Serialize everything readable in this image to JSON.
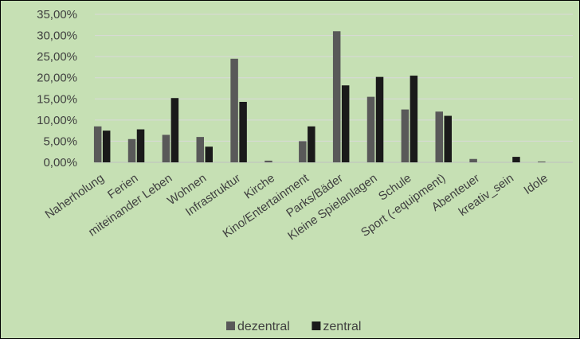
{
  "chart_data": {
    "type": "bar",
    "categories": [
      "Naherholung",
      "Ferien",
      "miteinander Leben",
      "Wohnen",
      "Infrastruktur",
      "Kirche",
      "Kino/Entertainment",
      "Parks/Bäder",
      "Kleine Spielanlagen",
      "Schule",
      "Sport (-equipment)",
      "Abenteuer",
      "kreativ_sein",
      "Idole"
    ],
    "series": [
      {
        "name": "dezentral",
        "color": "#595959",
        "values": [
          8.5,
          5.5,
          6.5,
          6.0,
          24.5,
          0.4,
          5.0,
          31.0,
          15.5,
          12.5,
          12.0,
          0.8,
          0.0,
          0.2
        ]
      },
      {
        "name": "zentral",
        "color": "#1a1a1a",
        "values": [
          7.5,
          7.8,
          15.2,
          3.7,
          14.3,
          0.0,
          8.5,
          18.2,
          20.2,
          20.5,
          11.0,
          0.0,
          1.3,
          0.0
        ]
      }
    ],
    "y_ticks": [
      "0,00%",
      "5,00%",
      "10,00%",
      "15,00%",
      "20,00%",
      "25,00%",
      "30,00%",
      "35,00%"
    ],
    "ylim": [
      0,
      35
    ],
    "grid": true,
    "legend": "bottom",
    "title": "",
    "xlabel": "",
    "ylabel": ""
  }
}
